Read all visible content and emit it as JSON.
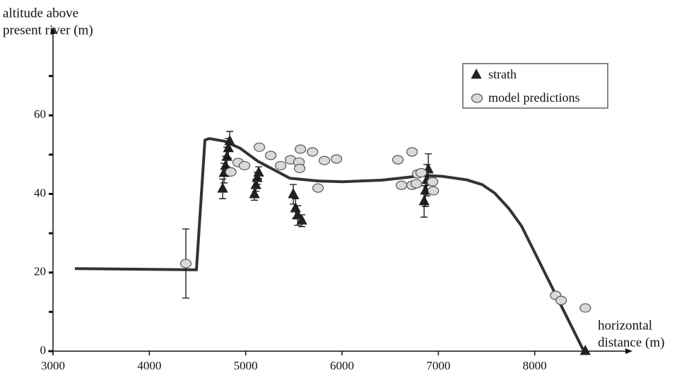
{
  "chart_data": {
    "type": "scatter",
    "ylabel": [
      "altitude above",
      "present river (m)"
    ],
    "xlabel": [
      "horizontal",
      "distance (m)"
    ],
    "xlim": [
      3000,
      9000
    ],
    "xticks": [
      3000,
      4000,
      5000,
      6000,
      7000,
      8000
    ],
    "ylim": [
      0,
      80
    ],
    "yticks": [
      0,
      20,
      40,
      60
    ],
    "yminorticks": [
      10,
      30,
      50,
      70
    ],
    "legend": "upper right",
    "profile": {
      "color": "#333333",
      "x": [
        3227,
        4489,
        4577,
        4621,
        4783,
        4944,
        5128,
        5458,
        5751,
        6001,
        6412,
        6852,
        7035,
        7292,
        7453,
        7585,
        7732,
        7864,
        8510
      ],
      "values": [
        21.0,
        20.7,
        53.7,
        54.1,
        53.4,
        51.6,
        48.3,
        44.0,
        43.3,
        43.1,
        43.5,
        44.7,
        44.5,
        43.6,
        42.4,
        40.2,
        36.3,
        31.8,
        0
      ]
    },
    "series": [
      {
        "name": "strath",
        "marker": "triangle",
        "color": "#222222",
        "x": [
          4761,
          4776,
          4790,
          4805,
          4820,
          4834,
          5091,
          5106,
          5120,
          5135,
          5494,
          5517,
          5539,
          5583,
          6852,
          6866,
          6881,
          6896,
          8525
        ],
        "values": [
          41.3,
          45.3,
          47.1,
          49.4,
          51.6,
          53.4,
          39.9,
          42.2,
          44.0,
          45.4,
          39.9,
          36.3,
          34.5,
          33.2,
          38.1,
          40.8,
          43.5,
          46.2,
          0
        ],
        "errors": [
          2.5,
          2.5,
          2.5,
          2.5,
          2.5,
          2.5,
          1.5,
          1.5,
          1.5,
          1.5,
          2.5,
          2.5,
          2.5,
          1.5,
          4.0,
          4.0,
          4.0,
          4.0,
          null
        ]
      },
      {
        "name": "model predictions",
        "marker": "circle",
        "color": "#d9d9d9",
        "x": [
          4379,
          4846,
          4922,
          4988,
          5142,
          5260,
          5363,
          5465,
          5553,
          5568,
          5560,
          5693,
          5751,
          5817,
          5942,
          6580,
          6617,
          6727,
          6727,
          6771,
          6786,
          6822,
          6940,
          6947,
          8217,
          8275,
          8525
        ],
        "values": [
          22.3,
          45.6,
          48.0,
          47.2,
          51.9,
          49.8,
          47.2,
          48.7,
          48.1,
          51.4,
          46.5,
          50.7,
          41.5,
          48.5,
          48.9,
          48.7,
          42.2,
          50.7,
          42.2,
          42.6,
          45.1,
          45.4,
          43.1,
          40.8,
          14.2,
          12.9,
          11.0
        ],
        "errors": [
          8.8,
          null,
          null,
          null,
          null,
          null,
          null,
          null,
          null,
          null,
          null,
          null,
          null,
          null,
          null,
          null,
          null,
          null,
          null,
          null,
          null,
          null,
          null,
          null,
          null,
          null,
          null
        ]
      }
    ]
  }
}
